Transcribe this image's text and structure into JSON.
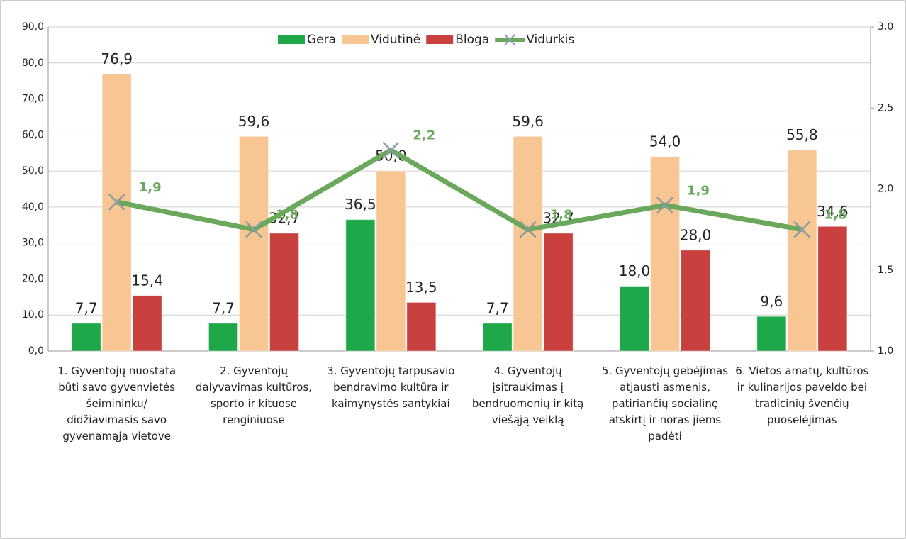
{
  "chart_data": {
    "type": "bar",
    "categories": [
      "1. Gyventojų nuostata būti savo gyvenvietės šeimininku/ didžiavimasis savo gyvenamąja vietove",
      "2. Gyventojų dalyvavimas kultūros, sporto ir kituose renginiuose",
      "3. Gyventojų tarpusavio bendravimo kultūra ir kaimynystės santykiai",
      "4. Gyventojų įsitraukimas į bendruomenių ir kitą viešąją veiklą",
      "5. Gyventojų gebėjimas atjausti asmenis, patiriančių socialinę atskirtį ir noras jiems padėti",
      "6. Vietos amatų, kultūros ir kulinarijos paveldo bei tradicinių švenčių puoselėjimas"
    ],
    "series": [
      {
        "name": "Gera",
        "color": "#1ea84a",
        "values": [
          7.7,
          7.7,
          36.5,
          7.7,
          18.0,
          9.6
        ],
        "value_labels": [
          "7,7",
          "7,7",
          "36,5",
          "7,7",
          "18,0",
          "9,6"
        ]
      },
      {
        "name": "Vidutinė",
        "color": "#f8c693",
        "values": [
          76.9,
          59.6,
          50.0,
          59.6,
          54.0,
          55.8
        ],
        "value_labels": [
          "76,9",
          "59,6",
          "50,0",
          "59,6",
          "54,0",
          "55,8"
        ]
      },
      {
        "name": "Bloga",
        "color": "#c8413f",
        "values": [
          15.4,
          32.7,
          13.5,
          32.7,
          28.0,
          34.6
        ],
        "value_labels": [
          "15,4",
          "32,7",
          "13,5",
          "32,7",
          "28,0",
          "34,6"
        ]
      },
      {
        "name": "Vidurkis",
        "type": "line",
        "axis": "y2",
        "color": "#6aa85c",
        "values": [
          1.92,
          1.75,
          2.24,
          1.75,
          1.9,
          1.75
        ],
        "value_labels": [
          "1,9",
          "1,8",
          "2,2",
          "1,8",
          "1,9",
          "1,8"
        ]
      }
    ],
    "ylim": [
      0,
      90
    ],
    "yticks": [
      {
        "value": 0,
        "label": "0,0"
      },
      {
        "value": 10,
        "label": "10,0"
      },
      {
        "value": 20,
        "label": "20,0"
      },
      {
        "value": 30,
        "label": "30,0"
      },
      {
        "value": 40,
        "label": "40,0"
      },
      {
        "value": 50,
        "label": "50,0"
      },
      {
        "value": 60,
        "label": "60,0"
      },
      {
        "value": 70,
        "label": "70,0"
      },
      {
        "value": 80,
        "label": "80,0"
      },
      {
        "value": 90,
        "label": "90,0"
      }
    ],
    "y2lim": [
      1,
      3
    ],
    "y2ticks": [
      {
        "value": 1,
        "label": "1,0"
      },
      {
        "value": 1.5,
        "label": "1,5"
      },
      {
        "value": 2,
        "label": "2,0"
      },
      {
        "value": 2.5,
        "label": "2,5"
      },
      {
        "value": 3,
        "label": "3,0"
      }
    ],
    "grid": true,
    "legend": "top"
  }
}
